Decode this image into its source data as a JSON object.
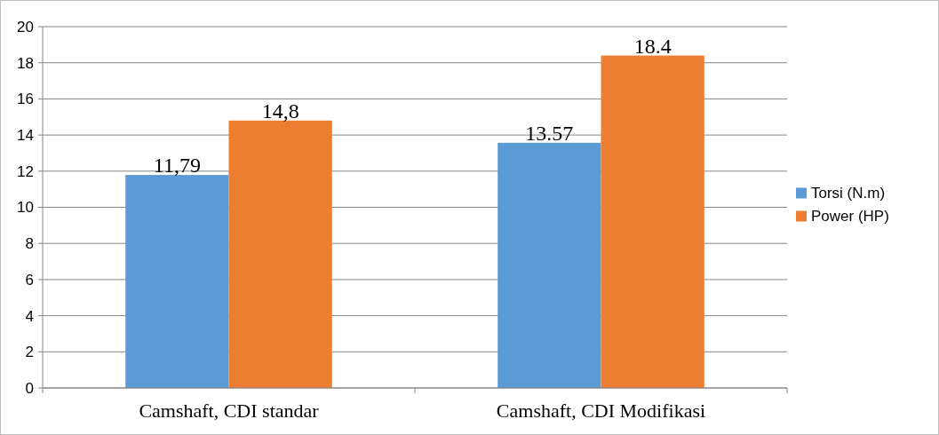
{
  "chart_data": {
    "type": "bar",
    "categories": [
      "Camshaft, CDI standar",
      "Camshaft, CDI Modifikasi"
    ],
    "series": [
      {
        "name": "Torsi (N.m)",
        "color": "#5b9bd5",
        "values": [
          11.79,
          13.57
        ],
        "value_labels": [
          "11,79",
          "13.57"
        ]
      },
      {
        "name": "Power (HP)",
        "color": "#ed7d31",
        "values": [
          14.8,
          18.4
        ],
        "value_labels": [
          "14,8",
          "18.4"
        ]
      }
    ],
    "ylim": [
      0,
      20
    ],
    "yticks": [
      0,
      2,
      4,
      6,
      8,
      10,
      12,
      14,
      16,
      18,
      20
    ],
    "grid": "y",
    "legend": "right"
  }
}
